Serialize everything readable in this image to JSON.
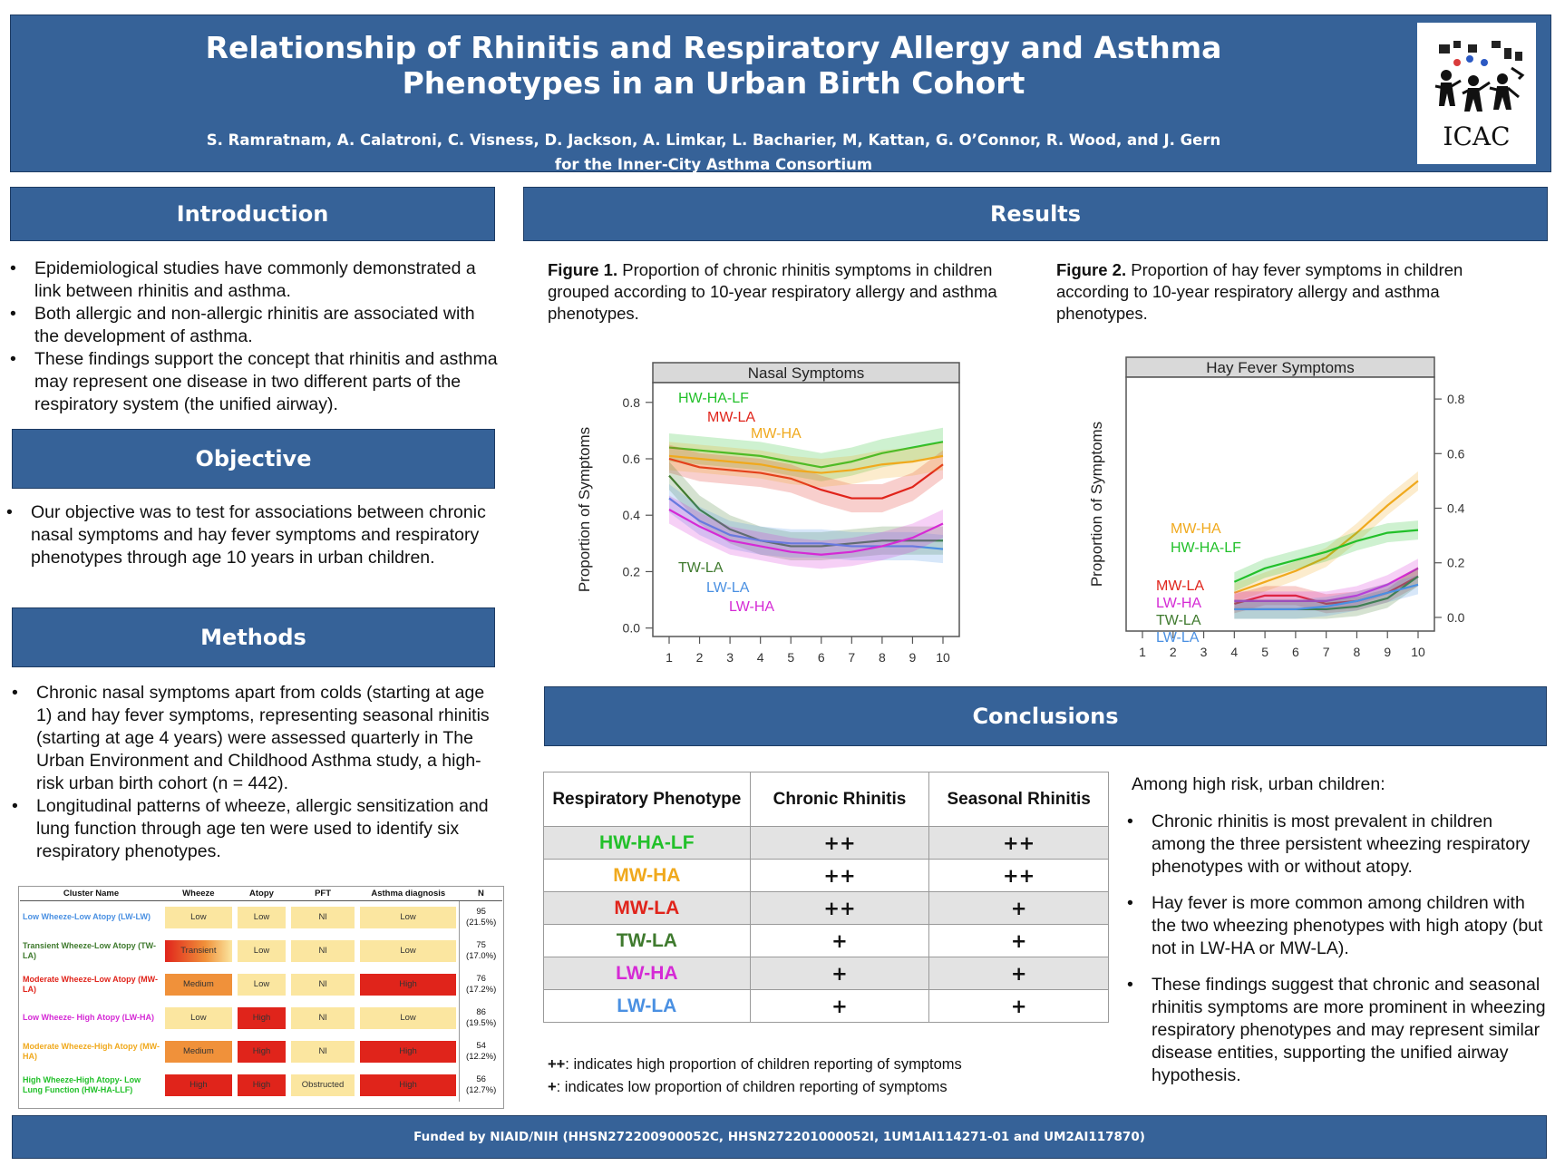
{
  "header": {
    "title_line1": "Relationship of Rhinitis and Respiratory Allergy and Asthma",
    "title_line2": "Phenotypes in an Urban Birth Cohort",
    "authors_line1": "S. Ramratnam, A. Calatroni, C. Visness, D. Jackson, A. Limkar, L. Bacharier, M, Kattan, G. O’Connor, R. Wood, and J. Gern",
    "authors_line2": "for the Inner-City Asthma Consortium",
    "logo_text": "ICAC"
  },
  "introduction": {
    "title": "Introduction",
    "bullets": [
      "Epidemiological studies have commonly demonstrated a link between rhinitis and asthma.",
      "Both allergic and non-allergic rhinitis are associated with the development of asthma.",
      "These findings support the concept that rhinitis and asthma may represent one disease in two different parts of the respiratory system (the unified airway)."
    ]
  },
  "objective": {
    "title": "Objective",
    "text": "Our objective was to test for associations between chronic nasal symptoms and hay fever symptoms and respiratory phenotypes through age 10 years in urban children."
  },
  "methods": {
    "title": "Methods",
    "bullets": [
      "Chronic nasal symptoms apart from colds (starting at age 1) and hay fever symptoms, representing seasonal rhinitis (starting at age 4 years) were assessed quarterly in The Urban Environment and Childhood Asthma study, a high-risk urban birth cohort (n = 442).",
      "Longitudinal patterns of wheeze, allergic sensitization and lung function through age ten were used to identify six respiratory phenotypes."
    ],
    "cluster_table": {
      "headers": [
        "Cluster Name",
        "Wheeze",
        "Atopy",
        "PFT",
        "Asthma diagnosis",
        "N"
      ],
      "rows": [
        {
          "name": "Low Wheeze-Low Atopy (LW-LW)",
          "color": "#4a90e2",
          "wheeze": "Low",
          "atopy": "Low",
          "pft": "Nl",
          "asthma": "Low",
          "n1": "95",
          "n2": "(21.5%)",
          "wc": "#fbe6a0",
          "ac": "#fbe6a0",
          "asc": "#fbe6a0"
        },
        {
          "name": "Transient Wheeze-Low Atopy (TW-LA)",
          "color": "#3f7a2e",
          "wheeze": "Transient",
          "atopy": "Low",
          "pft": "Nl",
          "asthma": "Low",
          "n1": "75",
          "n2": "(17.0%)",
          "wc": "grad",
          "ac": "#fbe6a0",
          "asc": "#fbe6a0"
        },
        {
          "name": "Moderate Wheeze-Low Atopy (MW-LA)",
          "color": "#e0241b",
          "wheeze": "Medium",
          "atopy": "Low",
          "pft": "Nl",
          "asthma": "High",
          "n1": "76",
          "n2": "(17.2%)",
          "wc": "#f0913a",
          "ac": "#fbe6a0",
          "asc": "#e0241b"
        },
        {
          "name": "Low Wheeze- High Atopy (LW-HA)",
          "color": "#d52ad5",
          "wheeze": "Low",
          "atopy": "High",
          "pft": "Nl",
          "asthma": "Low",
          "n1": "86",
          "n2": "(19.5%)",
          "wc": "#fbe6a0",
          "ac": "#e0241b",
          "asc": "#fbe6a0"
        },
        {
          "name": "Moderate Wheeze-High Atopy (MW-HA)",
          "color": "#f0a91d",
          "wheeze": "Medium",
          "atopy": "High",
          "pft": "Nl",
          "asthma": "High",
          "n1": "54",
          "n2": "(12.2%)",
          "wc": "#f0913a",
          "ac": "#e0241b",
          "asc": "#e0241b"
        },
        {
          "name": "High Wheeze-High Atopy- Low Lung Function (HW-HA-LLF)",
          "color": "#22c02a",
          "wheeze": "High",
          "atopy": "High",
          "pft": "Obstructed",
          "asthma": "High",
          "n1": "56",
          "n2": "(12.7%)",
          "wc": "#e0241b",
          "ac": "#e0241b",
          "asc": "#e0241b"
        }
      ]
    }
  },
  "results": {
    "title": "Results",
    "fig1_label": "Figure 1.",
    "fig1_caption": "Proportion of chronic rhinitis symptoms in children grouped according to 10-year respiratory allergy and asthma phenotypes.",
    "fig2_label": "Figure 2.",
    "fig2_caption": "Proportion of hay fever symptoms in children according to 10-year respiratory allergy and asthma phenotypes."
  },
  "chart_data": [
    {
      "type": "line",
      "title": "Nasal Symptoms",
      "ylabel": "Proportion of Symptoms",
      "xlabel": "",
      "x": [
        1,
        2,
        3,
        4,
        5,
        6,
        7,
        8,
        9,
        10
      ],
      "ylim": [
        -0.03,
        0.87
      ],
      "yticks": [
        "0.0",
        "0.2",
        "0.4",
        "0.6",
        "0.8"
      ],
      "yaxis_side": "left",
      "series": [
        {
          "name": "HW-HA-LF",
          "color": "#22c02a",
          "values": [
            0.64,
            0.63,
            0.62,
            0.61,
            0.59,
            0.57,
            0.59,
            0.62,
            0.64,
            0.66
          ]
        },
        {
          "name": "MW-LA",
          "color": "#e0241b",
          "values": [
            0.6,
            0.57,
            0.56,
            0.55,
            0.53,
            0.49,
            0.46,
            0.46,
            0.5,
            0.58
          ]
        },
        {
          "name": "MW-HA",
          "color": "#f0a91d",
          "values": [
            0.61,
            0.6,
            0.59,
            0.58,
            0.56,
            0.55,
            0.56,
            0.58,
            0.59,
            0.61
          ]
        },
        {
          "name": "TW-LA",
          "color": "#3f7a2e",
          "values": [
            0.54,
            0.42,
            0.35,
            0.31,
            0.29,
            0.29,
            0.3,
            0.31,
            0.31,
            0.31
          ]
        },
        {
          "name": "LW-LA",
          "color": "#4a90e2",
          "values": [
            0.46,
            0.38,
            0.33,
            0.31,
            0.3,
            0.3,
            0.29,
            0.29,
            0.29,
            0.28
          ]
        },
        {
          "name": "LW-HA",
          "color": "#d52ad5",
          "values": [
            0.42,
            0.36,
            0.31,
            0.29,
            0.27,
            0.26,
            0.27,
            0.29,
            0.32,
            0.37
          ]
        }
      ]
    },
    {
      "type": "line",
      "title": "Hay Fever Symptoms",
      "ylabel": "Proportion of Symptoms",
      "xlabel": "",
      "x": [
        1,
        2,
        3,
        4,
        5,
        6,
        7,
        8,
        9,
        10
      ],
      "ylim": [
        -0.05,
        0.88
      ],
      "yticks": [
        "0.0",
        "0.2",
        "0.4",
        "0.6",
        "0.8"
      ],
      "yaxis_side": "right",
      "series": [
        {
          "name": "MW-HA",
          "color": "#f0a91d",
          "values": [
            null,
            null,
            null,
            0.09,
            0.13,
            0.17,
            0.22,
            0.31,
            0.41,
            0.5
          ]
        },
        {
          "name": "HW-HA-LF",
          "color": "#22c02a",
          "values": [
            null,
            null,
            null,
            0.13,
            0.18,
            0.21,
            0.24,
            0.28,
            0.31,
            0.32
          ]
        },
        {
          "name": "MW-LA",
          "color": "#e0241b",
          "values": [
            null,
            null,
            null,
            0.05,
            0.08,
            0.08,
            0.05,
            0.06,
            0.09,
            0.15
          ]
        },
        {
          "name": "LW-HA",
          "color": "#d52ad5",
          "values": [
            null,
            null,
            null,
            0.06,
            0.06,
            0.06,
            0.06,
            0.08,
            0.12,
            0.18
          ]
        },
        {
          "name": "TW-LA",
          "color": "#3f7a2e",
          "values": [
            null,
            null,
            null,
            0.03,
            0.03,
            0.03,
            0.03,
            0.04,
            0.07,
            0.15
          ]
        },
        {
          "name": "LW-LA",
          "color": "#4a90e2",
          "values": [
            null,
            null,
            null,
            0.03,
            0.03,
            0.03,
            0.04,
            0.06,
            0.09,
            0.12
          ]
        }
      ]
    }
  ],
  "conclusions": {
    "title": "Conclusions",
    "table": {
      "headers": [
        "Respiratory Phenotype",
        "Chronic Rhinitis",
        "Seasonal Rhinitis"
      ],
      "rows": [
        {
          "phenotype": "HW-HA-LF",
          "color": "#22c02a",
          "chronic": "++",
          "seasonal": "++"
        },
        {
          "phenotype": "MW-HA",
          "color": "#f0a91d",
          "chronic": "++",
          "seasonal": "++"
        },
        {
          "phenotype": "MW-LA",
          "color": "#e0241b",
          "chronic": "++",
          "seasonal": "+"
        },
        {
          "phenotype": "TW-LA",
          "color": "#3f7a2e",
          "chronic": "+",
          "seasonal": "+"
        },
        {
          "phenotype": "LW-HA",
          "color": "#d52ad5",
          "chronic": "+",
          "seasonal": "+"
        },
        {
          "phenotype": "LW-LA",
          "color": "#4a90e2",
          "chronic": "+",
          "seasonal": "+"
        }
      ]
    },
    "legend_high_sym": "++",
    "legend_high": ": indicates high proportion of children reporting of symptoms",
    "legend_low_sym": "+",
    "legend_low": ": indicates low proportion of children reporting of symptoms",
    "lead": "Among high risk, urban children:",
    "bullets": [
      "Chronic rhinitis is most prevalent in children among the three persistent wheezing respiratory phenotypes with or without atopy.",
      "Hay fever is more common among children with the two wheezing phenotypes with high atopy (but not in LW-HA or MW-LA).",
      "These findings suggest that chronic and seasonal rhinitis symptoms are more prominent in wheezing respiratory phenotypes and may represent similar disease entities, supporting the unified airway hypothesis."
    ]
  },
  "footer": {
    "text": "Funded by NIAID/NIH (HHSN272200900052C, HHSN272201000052I, 1UM1AI114271-01 and UM2AI117870)"
  }
}
